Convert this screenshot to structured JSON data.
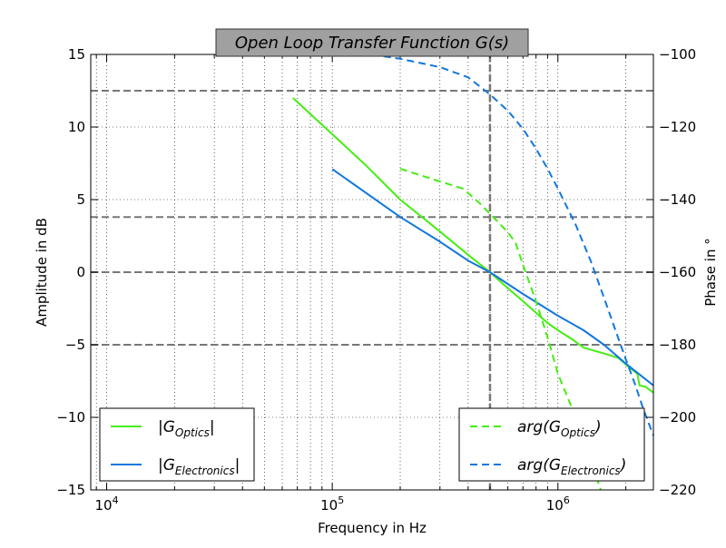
{
  "chart_data": {
    "type": "line",
    "title": "Open Loop Transfer Function G(s)",
    "title_box_color": "#a0a0a0",
    "title_text_color": "#ffffff",
    "xlabel": "Frequency in Hz",
    "ylabel_left": "Amplitude in dB",
    "ylabel_right": "Phase in °",
    "xscale": "log",
    "xlim": [
      8500,
      2650000
    ],
    "ylim_left": [
      -15,
      15
    ],
    "ylim_right": [
      -220,
      -100
    ],
    "grid": true,
    "x_ticks": [
      {
        "value": 10000,
        "base": "10",
        "exp": "4"
      },
      {
        "value": 100000,
        "base": "10",
        "exp": "5"
      },
      {
        "value": 1000000,
        "base": "10",
        "exp": "6"
      }
    ],
    "y_ticks_left": [
      {
        "value": 15,
        "label": "15"
      },
      {
        "value": 10,
        "label": "10"
      },
      {
        "value": 5,
        "label": "5"
      },
      {
        "value": 0,
        "label": "0"
      },
      {
        "value": -5,
        "label": "−5"
      },
      {
        "value": -10,
        "label": "−10"
      },
      {
        "value": -15,
        "label": "−15"
      }
    ],
    "y_ticks_right": [
      {
        "value": -100,
        "label": "−100"
      },
      {
        "value": -120,
        "label": "−120"
      },
      {
        "value": -140,
        "label": "−140"
      },
      {
        "value": -160,
        "label": "−160"
      },
      {
        "value": -180,
        "label": "−180"
      },
      {
        "value": -200,
        "label": "−200"
      },
      {
        "value": -220,
        "label": "−220"
      }
    ],
    "reference_lines": {
      "horizontal_left_axis": [
        12.5,
        3.8,
        0,
        -5
      ],
      "vertical_x": [
        500000
      ]
    },
    "series": [
      {
        "name": "|G_Optics|",
        "label_main": "|G",
        "label_sub": "Optics",
        "label_end": "|",
        "axis": "left",
        "color": "#44ee11",
        "style": "solid",
        "points": [
          [
            67000,
            12.0
          ],
          [
            100000,
            9.5
          ],
          [
            140000,
            7.4
          ],
          [
            200000,
            5.0
          ],
          [
            300000,
            2.8
          ],
          [
            400000,
            1.2
          ],
          [
            500000,
            0.0
          ],
          [
            600000,
            -1.1
          ],
          [
            700000,
            -2.0
          ],
          [
            800000,
            -2.8
          ],
          [
            900000,
            -3.5
          ],
          [
            1000000,
            -4.0
          ],
          [
            1150000,
            -4.6
          ],
          [
            1300000,
            -5.2
          ],
          [
            1600000,
            -5.6
          ],
          [
            1850000,
            -5.9
          ],
          [
            2050000,
            -6.5
          ],
          [
            2250000,
            -7.0
          ],
          [
            2300000,
            -7.8
          ],
          [
            2450000,
            -7.9
          ],
          [
            2650000,
            -8.3
          ]
        ]
      },
      {
        "name": "|G_Electronics|",
        "label_main": "|G",
        "label_sub": "Electronics",
        "label_end": "|",
        "axis": "left",
        "color": "#1177dd",
        "style": "solid",
        "points": [
          [
            100000,
            7.1
          ],
          [
            200000,
            3.8
          ],
          [
            300000,
            2.1
          ],
          [
            400000,
            0.8
          ],
          [
            500000,
            0.0
          ],
          [
            700000,
            -1.5
          ],
          [
            1000000,
            -3.0
          ],
          [
            1300000,
            -4.0
          ],
          [
            1600000,
            -5.0
          ],
          [
            2000000,
            -6.3
          ],
          [
            2650000,
            -7.8
          ]
        ]
      },
      {
        "name": "arg(G_Optics)",
        "label_main": "arg(G",
        "label_sub": "Optics",
        "label_end": ")",
        "axis": "right",
        "color": "#44ee11",
        "style": "dashed",
        "points": [
          [
            200000,
            -131.5
          ],
          [
            300000,
            -135.0
          ],
          [
            380000,
            -137.0
          ],
          [
            450000,
            -141.0
          ],
          [
            520000,
            -145.0
          ],
          [
            600000,
            -149.0
          ],
          [
            650000,
            -152.0
          ],
          [
            700000,
            -158.0
          ],
          [
            800000,
            -168.0
          ],
          [
            900000,
            -178.0
          ],
          [
            1000000,
            -188.0
          ],
          [
            1200000,
            -200.0
          ],
          [
            1400000,
            -212.0
          ],
          [
            1550000,
            -220.0
          ]
        ]
      },
      {
        "name": "arg(G_Electronics)",
        "label_main": "arg(G",
        "label_sub": "Electronics",
        "label_end": ")",
        "axis": "right",
        "color": "#1177dd",
        "style": "dashed",
        "points": [
          [
            150000,
            -100.0
          ],
          [
            200000,
            -101.2
          ],
          [
            300000,
            -103.5
          ],
          [
            400000,
            -106.3
          ],
          [
            500000,
            -111.0
          ],
          [
            600000,
            -115.5
          ],
          [
            700000,
            -120.5
          ],
          [
            800000,
            -126.0
          ],
          [
            900000,
            -131.5
          ],
          [
            1000000,
            -137.0
          ],
          [
            1200000,
            -147.0
          ],
          [
            1400000,
            -157.0
          ],
          [
            1600000,
            -167.0
          ],
          [
            1800000,
            -176.0
          ],
          [
            2000000,
            -184.0
          ],
          [
            2200000,
            -191.0
          ],
          [
            2400000,
            -198.0
          ],
          [
            2650000,
            -205.0
          ]
        ]
      }
    ],
    "legends": [
      {
        "position": "lower-left",
        "series": [
          0,
          1
        ]
      },
      {
        "position": "lower-right",
        "series": [
          2,
          3
        ]
      }
    ]
  }
}
